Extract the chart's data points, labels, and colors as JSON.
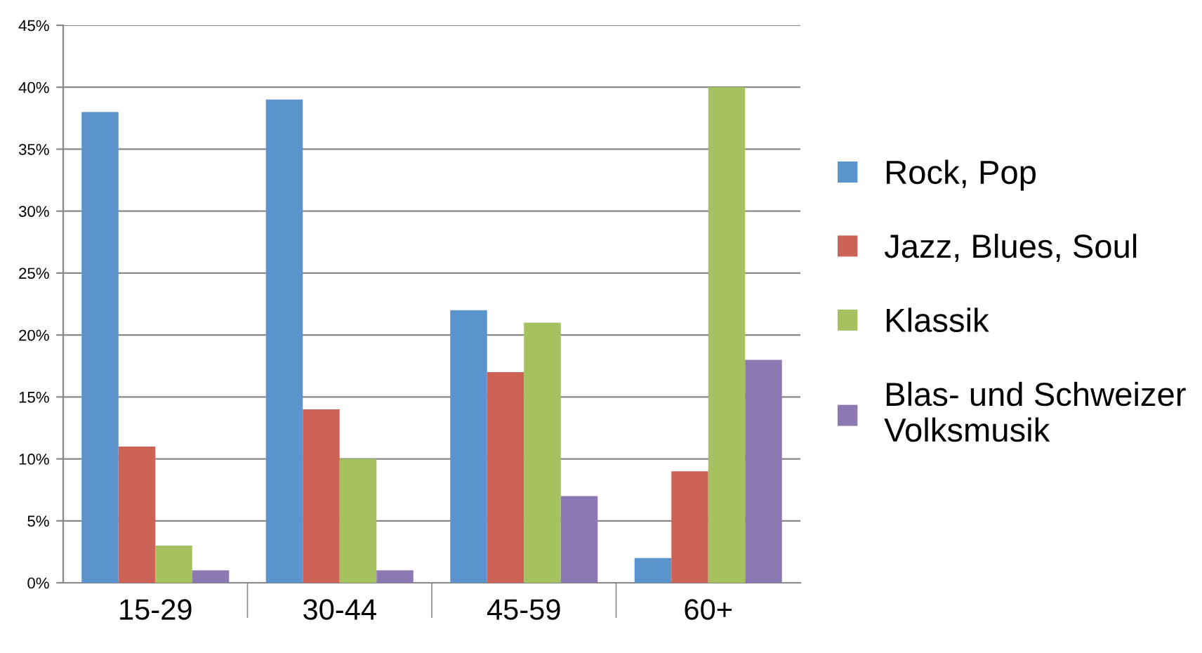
{
  "chart_data": {
    "type": "bar",
    "categories": [
      "15-29",
      "30-44",
      "45-59",
      "60+"
    ],
    "series": [
      {
        "name": "Rock, Pop",
        "color": "#5b93cd",
        "values": [
          38,
          39,
          22,
          2
        ]
      },
      {
        "name": "Jazz, Blues, Soul",
        "color": "#cd6256",
        "values": [
          11,
          14,
          17,
          9
        ]
      },
      {
        "name": "Klassik",
        "color": "#a5c160",
        "values": [
          3,
          10,
          21,
          40
        ]
      },
      {
        "name": "Blas- und Schweizer\nVolksmusik",
        "color": "#8c79b4",
        "values": [
          1,
          1,
          7,
          18
        ]
      }
    ],
    "ylim": [
      0,
      45
    ],
    "yticks": [
      {
        "value": 0,
        "label": "0%"
      },
      {
        "value": 5,
        "label": "5%"
      },
      {
        "value": 10,
        "label": "10%"
      },
      {
        "value": 15,
        "label": "15%"
      },
      {
        "value": 20,
        "label": "20%"
      },
      {
        "value": 25,
        "label": "25%"
      },
      {
        "value": 30,
        "label": "30%"
      },
      {
        "value": 35,
        "label": "35%"
      },
      {
        "value": 40,
        "label": "40%"
      },
      {
        "value": 45,
        "label": "45%"
      }
    ],
    "grid": "y",
    "legend": "right"
  }
}
